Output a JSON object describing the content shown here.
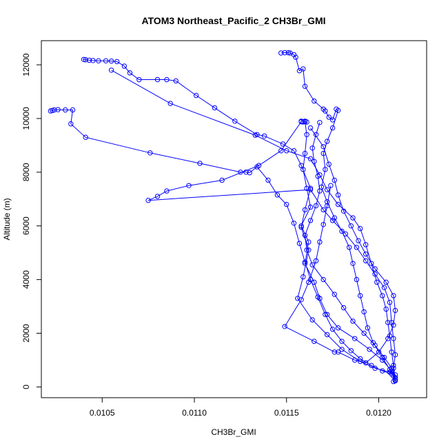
{
  "chart_data": {
    "type": "scatter",
    "title": "ATOM3 Northeast_Pacific_2 CH3Br_GMI",
    "xlabel": "CH3Br_GMI",
    "ylabel": "Altitude (m)",
    "xlim": [
      0.01017,
      0.01226
    ],
    "ylim": [
      -400,
      12900
    ],
    "x_ticks": [
      0.0105,
      0.011,
      0.0115,
      0.012
    ],
    "x_tick_labels": [
      "0.0105",
      "0.0110",
      "0.0115",
      "0.0120"
    ],
    "y_ticks": [
      0,
      2000,
      4000,
      6000,
      8000,
      10000,
      12000
    ],
    "y_tick_labels": [
      "0",
      "2000",
      "4000",
      "6000",
      "8000",
      "10000",
      "12000"
    ],
    "grid": false,
    "legend": "none",
    "marker": "open-circle",
    "connected": true,
    "color": "#0000ff",
    "series": [
      {
        "values": [
          [
            0.01208,
            200
          ],
          [
            0.01209,
            230
          ],
          [
            0.01207,
            600
          ],
          [
            0.01202,
            1000
          ],
          [
            0.01195,
            1400
          ],
          [
            0.01187,
            1800
          ],
          [
            0.01178,
            2200
          ],
          [
            0.01172,
            2700
          ],
          [
            0.01168,
            3300
          ],
          [
            0.01165,
            3900
          ],
          [
            0.0116,
            4600
          ],
          [
            0.01162,
            5400
          ],
          [
            0.01158,
            6000
          ],
          [
            0.01163,
            6700
          ],
          [
            0.01161,
            7400
          ],
          [
            0.01159,
            8100
          ],
          [
            0.0116,
            8700
          ],
          [
            0.01161,
            9400
          ],
          [
            0.0116,
            9880
          ],
          [
            0.01158,
            9900
          ],
          [
            0.01161,
            9870
          ],
          [
            0.0116,
            9900
          ],
          [
            0.01159,
            9870
          ]
        ]
      },
      {
        "values": [
          [
            0.01158,
            9880
          ],
          [
            0.01147,
            8800
          ],
          [
            0.01135,
            8250
          ],
          [
            0.01115,
            7700
          ],
          [
            0.01097,
            7500
          ],
          [
            0.01085,
            7300
          ],
          [
            0.0108,
            7100
          ],
          [
            0.01075,
            6950
          ],
          [
            0.01163,
            7350
          ],
          [
            0.0117,
            6600
          ],
          [
            0.01175,
            6200
          ],
          [
            0.01182,
            5700
          ],
          [
            0.01188,
            5200
          ],
          [
            0.01193,
            4700
          ],
          [
            0.01198,
            4200
          ],
          [
            0.01203,
            3700
          ],
          [
            0.01206,
            3150
          ],
          [
            0.01207,
            2400
          ],
          [
            0.01208,
            1800
          ],
          [
            0.01209,
            1200
          ],
          [
            0.01208,
            700
          ],
          [
            0.01209,
            250
          ]
        ]
      },
      {
        "values": [
          [
            0.0104,
            12200
          ],
          [
            0.01041,
            12190
          ],
          [
            0.01043,
            12170
          ],
          [
            0.01045,
            12160
          ],
          [
            0.01048,
            12150
          ],
          [
            0.01052,
            12150
          ],
          [
            0.01055,
            12140
          ],
          [
            0.01058,
            12120
          ],
          [
            0.01062,
            11950
          ],
          [
            0.01065,
            11700
          ],
          [
            0.0107,
            11450
          ],
          [
            0.0108,
            11450
          ],
          [
            0.01085,
            11450
          ],
          [
            0.0109,
            11400
          ],
          [
            0.01101,
            10860
          ],
          [
            0.01111,
            10400
          ],
          [
            0.01122,
            9900
          ],
          [
            0.01134,
            9400
          ],
          [
            0.01138,
            9350
          ],
          [
            0.01148,
            9050
          ],
          [
            0.01154,
            8800
          ],
          [
            0.01158,
            8250
          ],
          [
            0.01163,
            7400
          ],
          [
            0.0116,
            6600
          ],
          [
            0.01158,
            5950
          ],
          [
            0.01162,
            5100
          ],
          [
            0.01159,
            4100
          ],
          [
            0.01156,
            3300
          ],
          [
            0.01164,
            2500
          ],
          [
            0.01172,
            1950
          ],
          [
            0.0118,
            1400
          ],
          [
            0.0119,
            950
          ],
          [
            0.01198,
            700
          ],
          [
            0.01206,
            550
          ],
          [
            0.01209,
            450
          ]
        ]
      },
      {
        "values": [
          [
            0.01055,
            11800
          ],
          [
            0.01087,
            10560
          ],
          [
            0.01133,
            9380
          ],
          [
            0.0115,
            8800
          ],
          [
            0.01163,
            8500
          ],
          [
            0.01168,
            7900
          ],
          [
            0.01172,
            7350
          ],
          [
            0.01178,
            6800
          ],
          [
            0.01186,
            6300
          ],
          [
            0.0119,
            5900
          ],
          [
            0.01193,
            5300
          ],
          [
            0.01196,
            4600
          ],
          [
            0.01199,
            3900
          ],
          [
            0.01202,
            3400
          ],
          [
            0.01204,
            2900
          ],
          [
            0.01205,
            2400
          ],
          [
            0.01206,
            1900
          ],
          [
            0.01207,
            1300
          ],
          [
            0.01208,
            800
          ],
          [
            0.01209,
            300
          ]
        ]
      },
      {
        "values": [
          [
            0.01022,
            10280
          ],
          [
            0.01023,
            10300
          ],
          [
            0.01024,
            10320
          ],
          [
            0.01026,
            10330
          ],
          [
            0.0103,
            10320
          ],
          [
            0.01034,
            10320
          ],
          [
            0.01033,
            9800
          ],
          [
            0.01041,
            9300
          ],
          [
            0.01076,
            8720
          ],
          [
            0.01103,
            8330
          ],
          [
            0.01125,
            8000
          ],
          [
            0.01128,
            8000
          ],
          [
            0.0113,
            7980
          ],
          [
            0.01134,
            8200
          ],
          [
            0.0114,
            7700
          ],
          [
            0.01145,
            7150
          ],
          [
            0.0115,
            6800
          ],
          [
            0.01154,
            6100
          ],
          [
            0.01157,
            5350
          ],
          [
            0.0116,
            4650
          ],
          [
            0.01163,
            4000
          ],
          [
            0.01167,
            3350
          ],
          [
            0.01171,
            2700
          ],
          [
            0.01175,
            2150
          ],
          [
            0.0118,
            1700
          ],
          [
            0.01185,
            1350
          ],
          [
            0.0119,
            1050
          ],
          [
            0.01196,
            800
          ],
          [
            0.01202,
            600
          ],
          [
            0.01207,
            480
          ]
        ]
      },
      {
        "values": [
          [
            0.01147,
            12440
          ],
          [
            0.01149,
            12450
          ],
          [
            0.01151,
            12450
          ],
          [
            0.01152,
            12440
          ],
          [
            0.01154,
            12380
          ],
          [
            0.01155,
            12280
          ],
          [
            0.01157,
            11780
          ],
          [
            0.01159,
            11850
          ],
          [
            0.0116,
            11200
          ],
          [
            0.01165,
            10650
          ],
          [
            0.0117,
            10350
          ],
          [
            0.01171,
            10280
          ],
          [
            0.01173,
            10050
          ],
          [
            0.01175,
            9950
          ],
          [
            0.01177,
            10350
          ],
          [
            0.01178,
            10300
          ],
          [
            0.01175,
            9650
          ],
          [
            0.01172,
            9150
          ],
          [
            0.0117,
            8700
          ],
          [
            0.01171,
            8100
          ],
          [
            0.01169,
            7450
          ],
          [
            0.01172,
            6900
          ],
          [
            0.01176,
            6300
          ],
          [
            0.0118,
            5800
          ],
          [
            0.01184,
            5200
          ],
          [
            0.01186,
            4600
          ],
          [
            0.01188,
            4000
          ],
          [
            0.0119,
            3400
          ],
          [
            0.01192,
            2800
          ],
          [
            0.01194,
            2200
          ],
          [
            0.01197,
            1650
          ],
          [
            0.01202,
            1100
          ],
          [
            0.01206,
            650
          ],
          [
            0.01208,
            400
          ]
        ]
      },
      {
        "values": [
          [
            0.01168,
            9850
          ],
          [
            0.01166,
            9400
          ],
          [
            0.01164,
            8900
          ],
          [
            0.01165,
            8400
          ],
          [
            0.01167,
            7850
          ],
          [
            0.01168,
            7300
          ],
          [
            0.01166,
            6750
          ],
          [
            0.01163,
            6200
          ],
          [
            0.0116,
            5650
          ],
          [
            0.01161,
            5100
          ],
          [
            0.01164,
            4550
          ],
          [
            0.0117,
            4000
          ],
          [
            0.01176,
            3450
          ],
          [
            0.01181,
            2950
          ],
          [
            0.01186,
            2450
          ],
          [
            0.01192,
            2000
          ],
          [
            0.01198,
            1550
          ],
          [
            0.01203,
            1100
          ],
          [
            0.01207,
            700
          ],
          [
            0.01209,
            350
          ]
        ]
      },
      {
        "values": [
          [
            0.01163,
            9650
          ],
          [
            0.0117,
            8950
          ],
          [
            0.01173,
            8300
          ],
          [
            0.01176,
            7700
          ],
          [
            0.01178,
            7150
          ],
          [
            0.01181,
            6550
          ],
          [
            0.01185,
            6000
          ],
          [
            0.01189,
            5450
          ],
          [
            0.01193,
            4950
          ],
          [
            0.01198,
            4400
          ],
          [
            0.01204,
            3900
          ],
          [
            0.01208,
            3400
          ],
          [
            0.01209,
            2850
          ],
          [
            0.01208,
            2300
          ],
          [
            0.01205,
            1800
          ],
          [
            0.012,
            1300
          ],
          [
            0.01193,
            900
          ],
          [
            0.01187,
            1000
          ],
          [
            0.01178,
            1300
          ],
          [
            0.01176,
            1300
          ],
          [
            0.01165,
            1700
          ],
          [
            0.01149,
            2250
          ],
          [
            0.01158,
            3250
          ],
          [
            0.01162,
            3900
          ],
          [
            0.01166,
            4700
          ],
          [
            0.01168,
            5400
          ],
          [
            0.0117,
            6050
          ],
          [
            0.01172,
            6750
          ],
          [
            0.01174,
            7500
          ]
        ]
      }
    ]
  }
}
